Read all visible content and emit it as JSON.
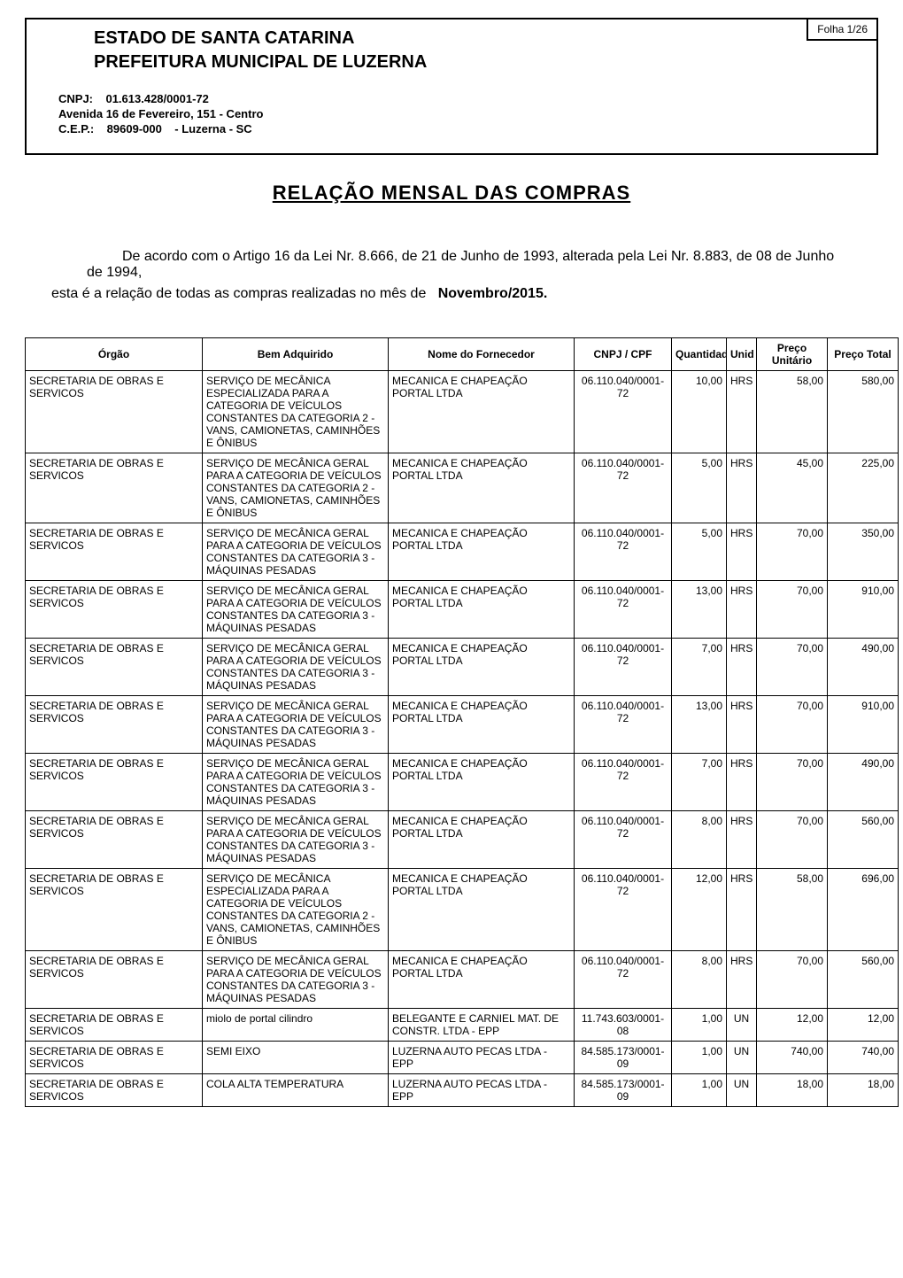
{
  "folio": "Folha  1/26",
  "header": {
    "estado": "ESTADO DE SANTA CATARINA",
    "prefeitura": "PREFEITURA MUNICIPAL DE LUZERNA",
    "cnpj_label": "CNPJ:",
    "cnpj": "01.613.428/0001-72",
    "endereco": "Avenida 16 de Fevereiro, 151 - Centro",
    "cep_label": "C.E.P.:",
    "cep": "89609-000",
    "cidade": "- Luzerna - SC"
  },
  "title": "RELAÇÃO  MENSAL  DAS  COMPRAS",
  "intro_line1": "De acordo com o Artigo 16 da Lei Nr. 8.666, de 21 de Junho de 1993, alterada pela Lei Nr. 8.883, de 08 de Junho de 1994,",
  "intro_line2_a": "esta é a relação de todas as compras realizadas no mês de ",
  "intro_line2_b": "Novembro/2015.",
  "columns": {
    "orgao": "Órgão",
    "bem": "Bem Adquirido",
    "fornecedor": "Nome do Fornecedor",
    "cnpj": "CNPJ / CPF",
    "qtd": "Quantidade",
    "unid": "Unid",
    "unit": "Preço Unitário",
    "total": "Preço Total"
  },
  "rows": [
    {
      "orgao": "SECRETARIA DE OBRAS E SERVICOS",
      "bem": "SERVIÇO DE MECÂNICA ESPECIALIZADA PARA A CATEGORIA DE VEÍCULOS CONSTANTES DA CATEGORIA 2 - VANS, CAMIONETAS, CAMINHÕES E ÔNIBUS",
      "forn": "MECANICA E CHAPEAÇÃO PORTAL LTDA",
      "cnpj": "06.110.040/0001-72",
      "qtd": "10,00",
      "unid": "HRS",
      "unit": "58,00",
      "total": "580,00"
    },
    {
      "orgao": "SECRETARIA DE OBRAS E SERVICOS",
      "bem": "SERVIÇO DE MECÂNICA GERAL PARA A CATEGORIA DE VEÍCULOS CONSTANTES DA CATEGORIA 2 - VANS, CAMIONETAS, CAMINHÕES E ÔNIBUS",
      "forn": "MECANICA E CHAPEAÇÃO PORTAL LTDA",
      "cnpj": "06.110.040/0001-72",
      "qtd": "5,00",
      "unid": "HRS",
      "unit": "45,00",
      "total": "225,00"
    },
    {
      "orgao": "SECRETARIA DE OBRAS E SERVICOS",
      "bem": "SERVIÇO DE MECÂNICA GERAL PARA A CATEGORIA DE VEÍCULOS CONSTANTES DA CATEGORIA 3 - MÁQUINAS PESADAS",
      "forn": "MECANICA E CHAPEAÇÃO PORTAL LTDA",
      "cnpj": "06.110.040/0001-72",
      "qtd": "5,00",
      "unid": "HRS",
      "unit": "70,00",
      "total": "350,00"
    },
    {
      "orgao": "SECRETARIA DE OBRAS E SERVICOS",
      "bem": "SERVIÇO DE MECÂNICA GERAL PARA A CATEGORIA DE VEÍCULOS CONSTANTES DA CATEGORIA 3 - MÁQUINAS PESADAS",
      "forn": "MECANICA E CHAPEAÇÃO PORTAL LTDA",
      "cnpj": "06.110.040/0001-72",
      "qtd": "13,00",
      "unid": "HRS",
      "unit": "70,00",
      "total": "910,00"
    },
    {
      "orgao": "SECRETARIA DE OBRAS E SERVICOS",
      "bem": "SERVIÇO DE MECÂNICA GERAL PARA A CATEGORIA DE VEÍCULOS CONSTANTES DA CATEGORIA 3 - MÁQUINAS PESADAS",
      "forn": "MECANICA E CHAPEAÇÃO PORTAL LTDA",
      "cnpj": "06.110.040/0001-72",
      "qtd": "7,00",
      "unid": "HRS",
      "unit": "70,00",
      "total": "490,00"
    },
    {
      "orgao": "SECRETARIA DE OBRAS E SERVICOS",
      "bem": "SERVIÇO DE MECÂNICA GERAL PARA A CATEGORIA DE VEÍCULOS CONSTANTES DA CATEGORIA 3 - MÁQUINAS PESADAS",
      "forn": "MECANICA E CHAPEAÇÃO PORTAL LTDA",
      "cnpj": "06.110.040/0001-72",
      "qtd": "13,00",
      "unid": "HRS",
      "unit": "70,00",
      "total": "910,00"
    },
    {
      "orgao": "SECRETARIA DE OBRAS E SERVICOS",
      "bem": "SERVIÇO DE MECÂNICA GERAL PARA A CATEGORIA DE VEÍCULOS CONSTANTES DA CATEGORIA 3 - MÁQUINAS PESADAS",
      "forn": "MECANICA E CHAPEAÇÃO PORTAL LTDA",
      "cnpj": "06.110.040/0001-72",
      "qtd": "7,00",
      "unid": "HRS",
      "unit": "70,00",
      "total": "490,00"
    },
    {
      "orgao": "SECRETARIA DE OBRAS E SERVICOS",
      "bem": "SERVIÇO DE MECÂNICA GERAL PARA A CATEGORIA DE VEÍCULOS CONSTANTES DA CATEGORIA 3 - MÁQUINAS PESADAS",
      "forn": "MECANICA E CHAPEAÇÃO PORTAL LTDA",
      "cnpj": "06.110.040/0001-72",
      "qtd": "8,00",
      "unid": "HRS",
      "unit": "70,00",
      "total": "560,00"
    },
    {
      "orgao": "SECRETARIA DE OBRAS E SERVICOS",
      "bem": "SERVIÇO DE MECÂNICA ESPECIALIZADA PARA A CATEGORIA DE VEÍCULOS CONSTANTES DA CATEGORIA 2 - VANS, CAMIONETAS, CAMINHÕES E ÔNIBUS",
      "forn": "MECANICA E CHAPEAÇÃO PORTAL LTDA",
      "cnpj": "06.110.040/0001-72",
      "qtd": "12,00",
      "unid": "HRS",
      "unit": "58,00",
      "total": "696,00"
    },
    {
      "orgao": "SECRETARIA DE OBRAS E SERVICOS",
      "bem": "SERVIÇO DE MECÂNICA GERAL PARA A CATEGORIA DE VEÍCULOS CONSTANTES DA CATEGORIA 3 - MÁQUINAS PESADAS",
      "forn": "MECANICA E CHAPEAÇÃO PORTAL LTDA",
      "cnpj": "06.110.040/0001-72",
      "qtd": "8,00",
      "unid": "HRS",
      "unit": "70,00",
      "total": "560,00"
    },
    {
      "orgao": "SECRETARIA DE OBRAS E SERVICOS",
      "bem": "miolo de portal cilindro",
      "forn": "BELEGANTE E CARNIEL MAT. DE CONSTR. LTDA - EPP",
      "cnpj": "11.743.603/0001-08",
      "qtd": "1,00",
      "unid": "UN",
      "unit": "12,00",
      "total": "12,00"
    },
    {
      "orgao": "SECRETARIA DE OBRAS E SERVICOS",
      "bem": "SEMI EIXO",
      "forn": "LUZERNA AUTO PECAS LTDA - EPP",
      "cnpj": "84.585.173/0001-09",
      "qtd": "1,00",
      "unid": "UN",
      "unit": "740,00",
      "total": "740,00"
    },
    {
      "orgao": "SECRETARIA DE OBRAS E SERVICOS",
      "bem": "COLA ALTA TEMPERATURA",
      "forn": "LUZERNA AUTO PECAS LTDA - EPP",
      "cnpj": "84.585.173/0001-09",
      "qtd": "1,00",
      "unid": "UN",
      "unit": "18,00",
      "total": "18,00"
    }
  ]
}
